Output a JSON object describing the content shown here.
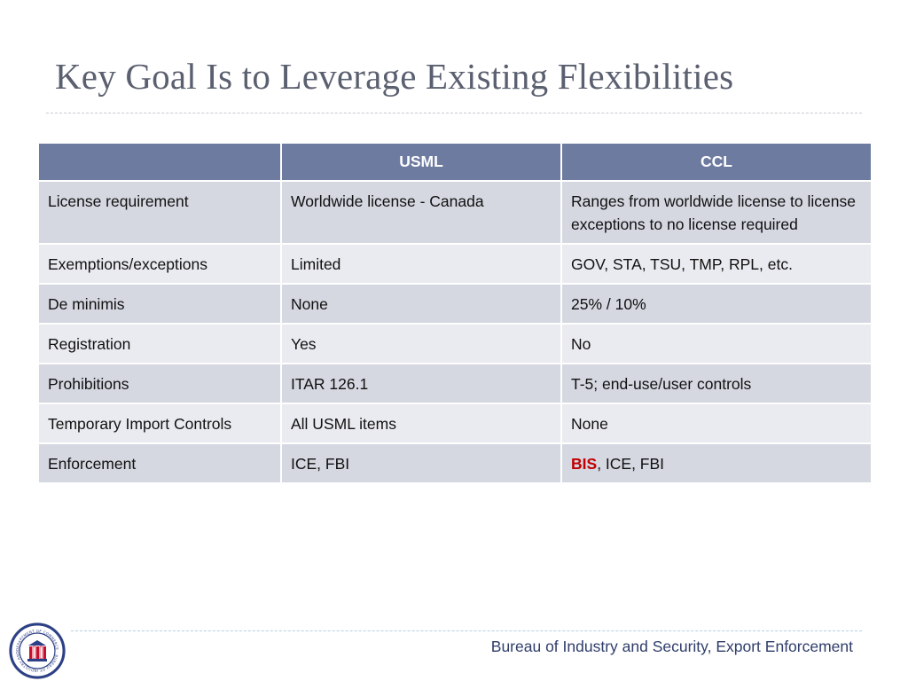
{
  "slide": {
    "title": "Key Goal Is to Leverage Existing Flexibilities"
  },
  "table": {
    "headers": [
      "",
      "USML",
      "CCL"
    ],
    "rows": [
      {
        "label": "License requirement",
        "usml": "Worldwide license - Canada",
        "ccl": "Ranges from worldwide license to license exceptions to no license required"
      },
      {
        "label": "Exemptions/exceptions",
        "usml": "Limited",
        "ccl": "GOV, STA, TSU, TMP, RPL, etc."
      },
      {
        "label": "De minimis",
        "usml": "None",
        "ccl": "25% / 10%"
      },
      {
        "label": "Registration",
        "usml": "Yes",
        "ccl": "No"
      },
      {
        "label": "Prohibitions",
        "usml": "ITAR 126.1",
        "ccl": "T-5; end-use/user controls"
      },
      {
        "label": "Temporary Import Controls",
        "usml": "All USML items",
        "ccl": "None"
      },
      {
        "label": "Enforcement",
        "usml": "ICE, FBI",
        "ccl_highlight": "BIS",
        "ccl_rest": ", ICE, FBI"
      }
    ]
  },
  "footer": {
    "text": "Bureau of Industry and Security, Export Enforcement",
    "seal_text": "DEPARTMENT OF COMMERCE · BUREAU OF INDUSTRY AND SECURITY",
    "seal_icon": "agency-seal-icon"
  },
  "colors": {
    "title": "#5b6070",
    "header_fill": "#6e7ba0",
    "row_dark": "#d5d7e1",
    "row_light": "#eaebf0",
    "highlight": "#c00000",
    "footer_text": "#2f3d6b"
  }
}
